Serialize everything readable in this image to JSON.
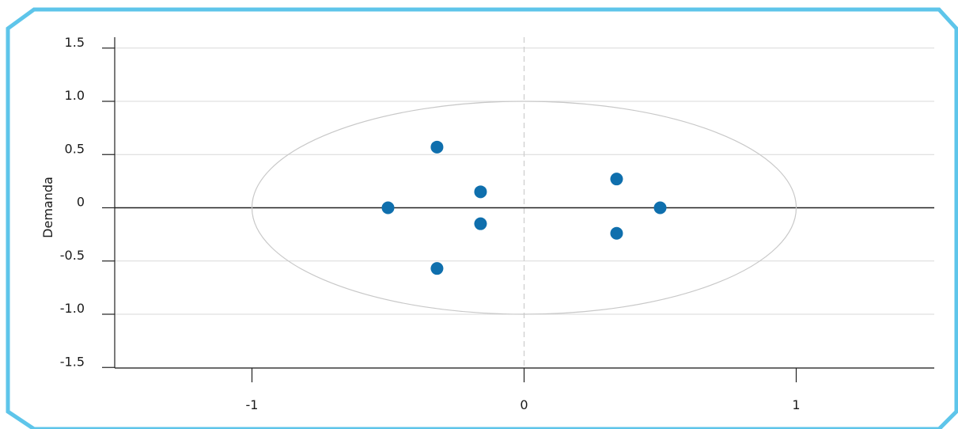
{
  "colors": {
    "frame": "#5ec5ea",
    "point": "#0f6fad",
    "grid": "#d9d9d9",
    "axis": "#222222",
    "ellipse": "#c8c8c8",
    "dashed_zero": "#cccccc"
  },
  "chart_data": {
    "type": "scatter",
    "title": "",
    "xlabel": "",
    "ylabel": "Demanda",
    "xlim": [
      -1.5,
      1.5
    ],
    "ylim": [
      -1.5,
      1.5
    ],
    "x_ticks": [
      -1,
      0,
      1
    ],
    "x_tick_labels": [
      "-1",
      "0",
      "1"
    ],
    "y_ticks": [
      1.5,
      1.0,
      0.5,
      0,
      -0.5,
      -1.0,
      -1.5
    ],
    "y_tick_labels": [
      "1.5",
      "1.0",
      "0.5",
      "0",
      "-0.5",
      "-1.0",
      "-1.5"
    ],
    "grid": "horizontal",
    "reference_ellipse": {
      "cx": 0,
      "cy": 0,
      "rx": 1,
      "ry": 1
    },
    "points": [
      {
        "x": -0.5,
        "y": 0
      },
      {
        "x": -0.32,
        "y": 0.57
      },
      {
        "x": -0.32,
        "y": -0.57
      },
      {
        "x": -0.16,
        "y": 0.15
      },
      {
        "x": -0.16,
        "y": -0.15
      },
      {
        "x": 0.34,
        "y": 0.27
      },
      {
        "x": 0.34,
        "y": -0.24
      },
      {
        "x": 0.5,
        "y": 0
      }
    ]
  }
}
